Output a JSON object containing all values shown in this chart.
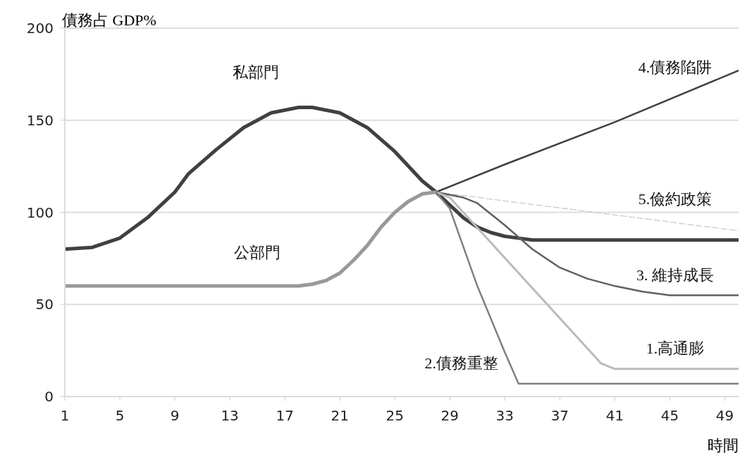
{
  "chart_data": {
    "type": "line",
    "ylabel": "債務占 GDP%",
    "xlabel": "時間",
    "xlim": [
      1,
      50
    ],
    "xticks": [
      1,
      5,
      9,
      13,
      17,
      21,
      25,
      29,
      33,
      37,
      41,
      45,
      49
    ],
    "ylim": [
      0,
      200
    ],
    "yticks": [
      0,
      50,
      100,
      150,
      200
    ],
    "grid": "y",
    "marker": "none",
    "series": [
      {
        "name": "私部門",
        "color": "#404040",
        "x": [
          1,
          3,
          5,
          7,
          9,
          10,
          12,
          14,
          16,
          18,
          19,
          21,
          23,
          25,
          27,
          28,
          30,
          31,
          32,
          33,
          34,
          35,
          50
        ],
        "values": [
          80,
          81,
          86,
          97,
          111,
          121,
          134,
          146,
          154,
          157,
          157,
          154,
          146,
          133,
          117,
          111,
          97,
          92,
          89,
          87,
          86,
          85,
          85
        ]
      },
      {
        "name": "公部門",
        "color": "#999999",
        "x": [
          1,
          18,
          19,
          20,
          21,
          22,
          23,
          24,
          25,
          26,
          27,
          28
        ],
        "values": [
          60,
          60,
          61,
          63,
          67,
          74,
          82,
          92,
          100,
          106,
          110,
          111
        ]
      },
      {
        "name": "4.債務陷阱",
        "color": "#404040",
        "x": [
          28,
          33,
          41,
          50
        ],
        "values": [
          111,
          126,
          149,
          177
        ]
      },
      {
        "name": "5.儉約政策",
        "color": "#d0d0d0",
        "line_style": "dashed",
        "x": [
          28,
          50
        ],
        "values": [
          111,
          90
        ]
      },
      {
        "name": "3.  維持成長",
        "color": "#606060",
        "x": [
          28,
          30,
          31,
          33,
          35,
          37,
          39,
          41,
          43,
          45,
          50
        ],
        "values": [
          111,
          108,
          105,
          93,
          80,
          70,
          64,
          60,
          57,
          55,
          55
        ]
      },
      {
        "name": "1.高通膨",
        "color": "#bbbbbb",
        "x": [
          28,
          29,
          40,
          41,
          50
        ],
        "values": [
          111,
          108,
          18,
          15,
          15
        ]
      },
      {
        "name": "2.債務重整",
        "color": "#808080",
        "x": [
          28,
          29,
          31,
          33,
          34,
          50
        ],
        "values": [
          111,
          102,
          60,
          24,
          7,
          7
        ]
      }
    ]
  }
}
